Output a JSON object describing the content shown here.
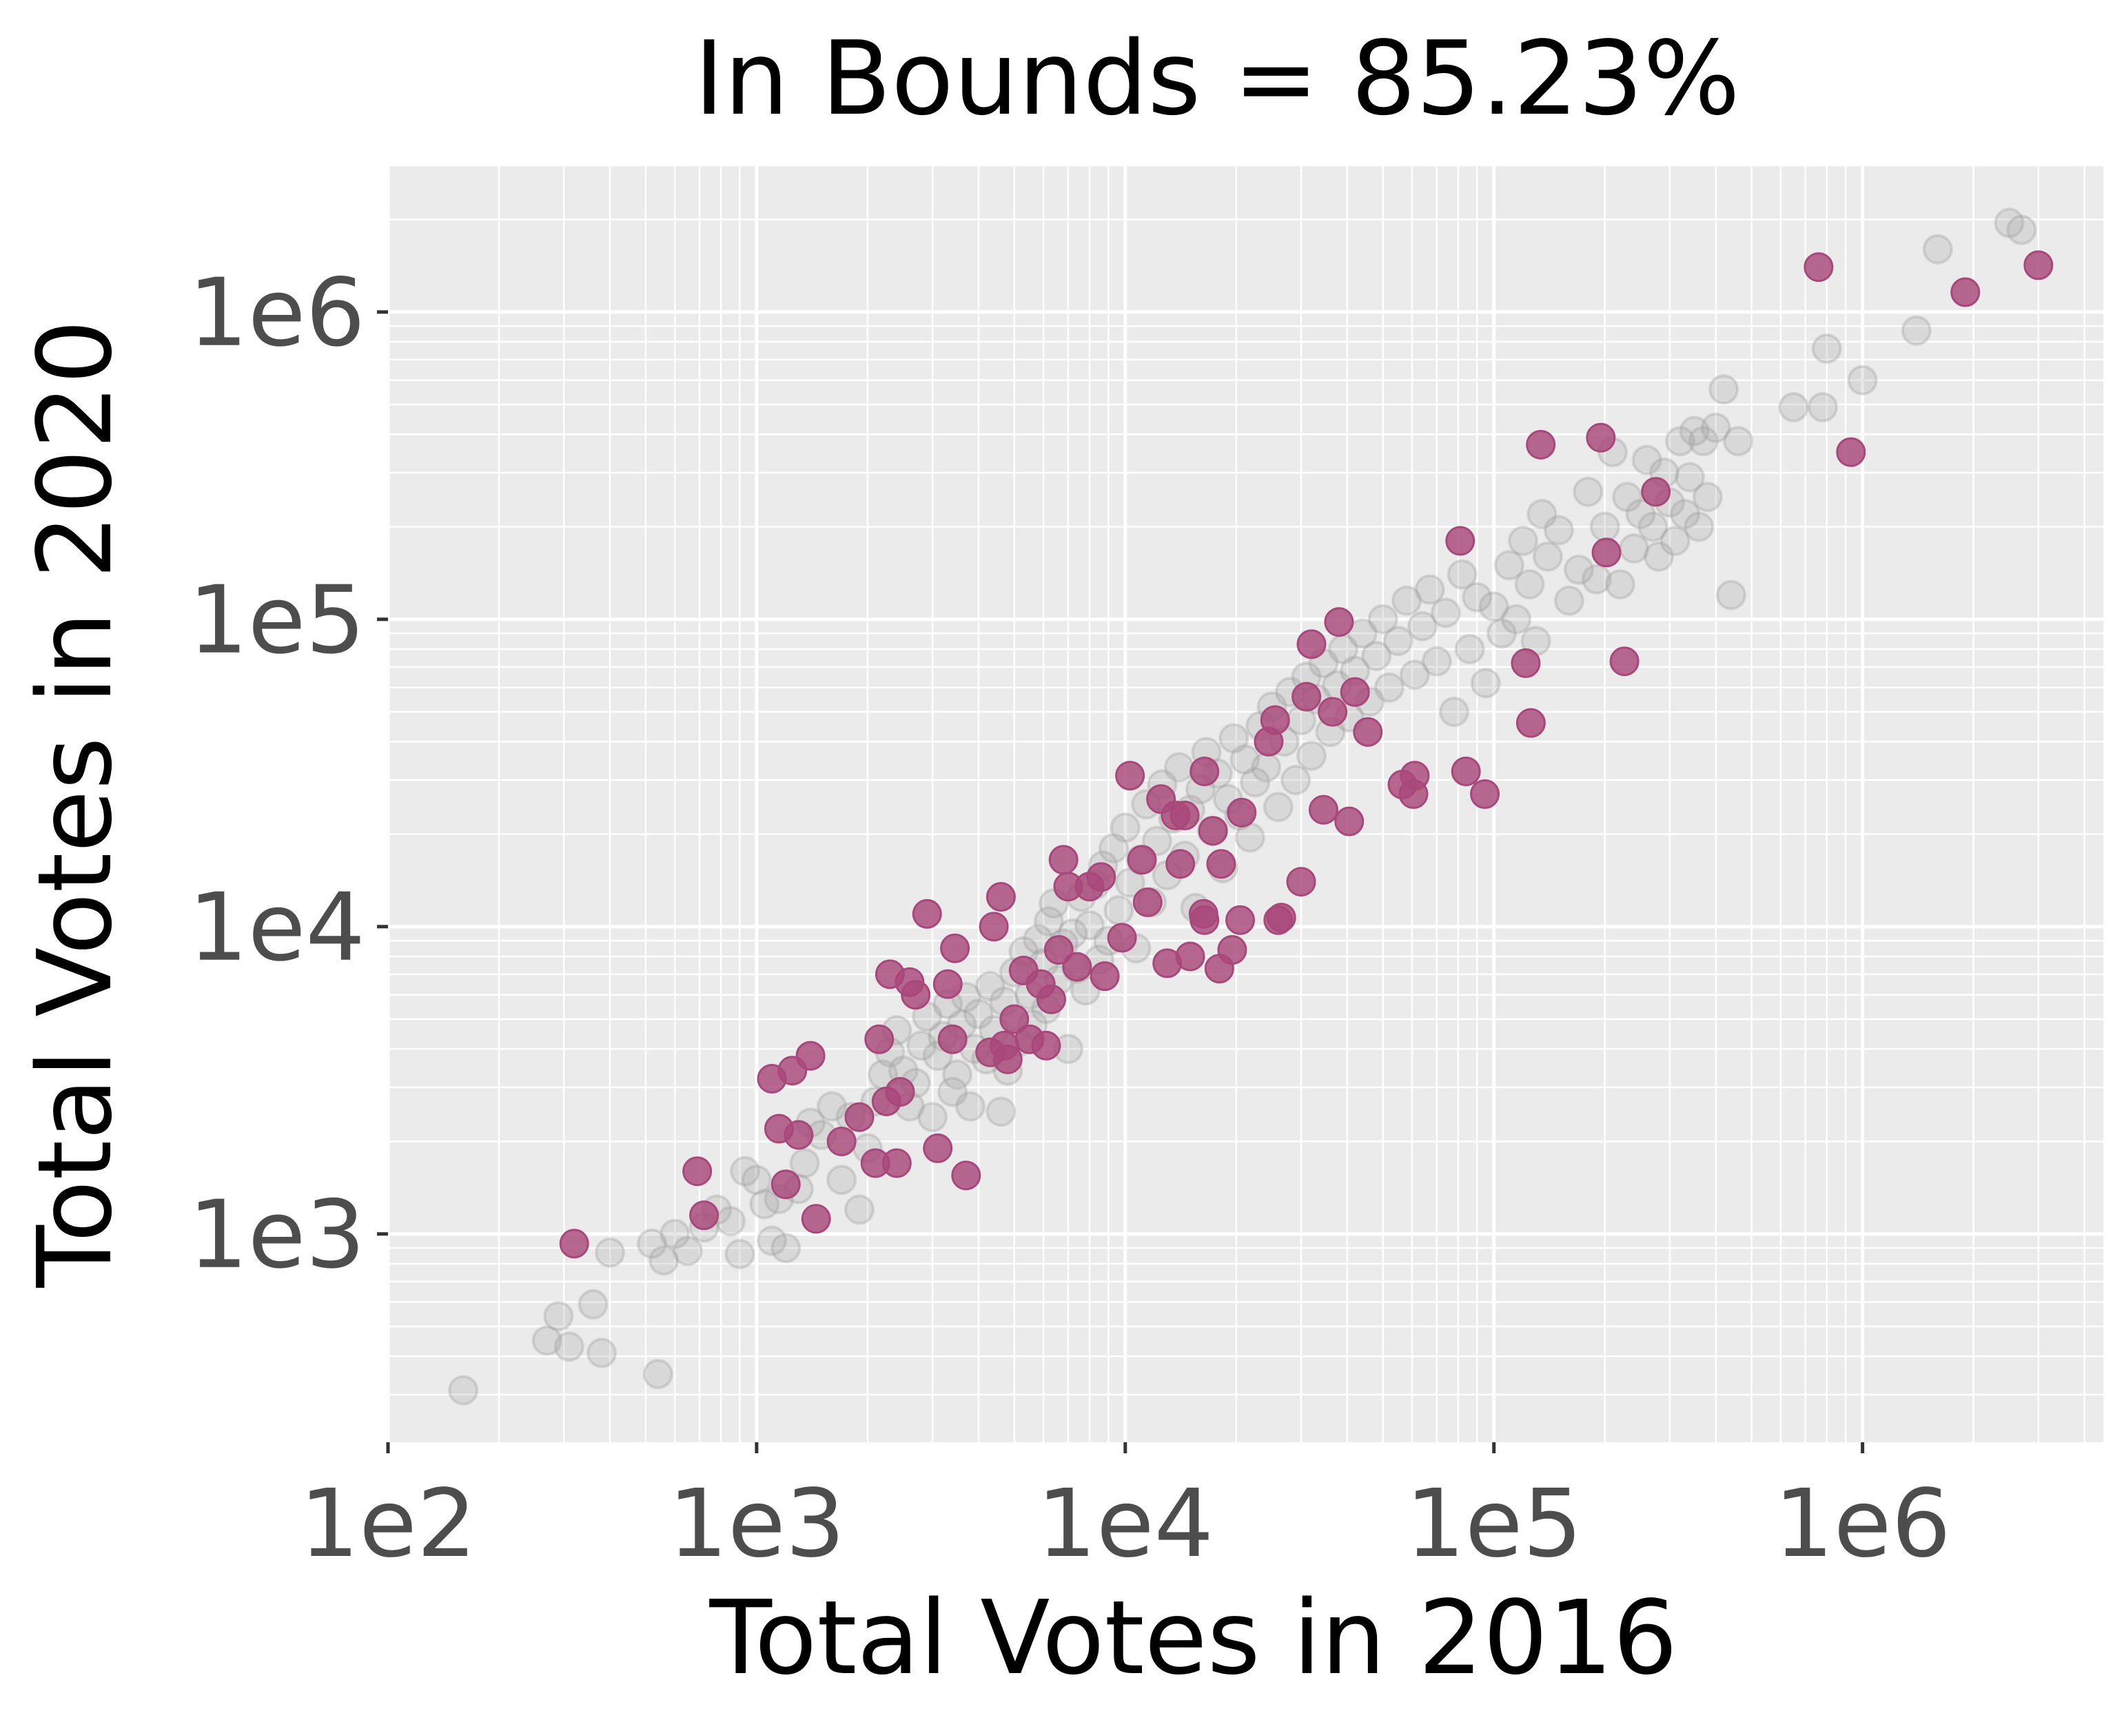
{
  "chart_data": {
    "type": "scatter",
    "title": "In Bounds = 85.23%",
    "xlabel": "Total Votes in 2016",
    "ylabel": "Total Votes in 2020",
    "xscale": "log",
    "yscale": "log",
    "xlim": [
      100,
      4500000
    ],
    "ylim": [
      210,
      3000000
    ],
    "grid": true,
    "legend": "none",
    "x_ticks": [
      {
        "value": 100,
        "label": "1e2"
      },
      {
        "value": 1000,
        "label": "1e3"
      },
      {
        "value": 10000,
        "label": "1e4"
      },
      {
        "value": 100000,
        "label": "1e5"
      },
      {
        "value": 1000000,
        "label": "1e6"
      }
    ],
    "y_ticks": [
      {
        "value": 1000,
        "label": "1e3"
      },
      {
        "value": 10000,
        "label": "1e4"
      },
      {
        "value": 100000,
        "label": "1e5"
      },
      {
        "value": 1000000,
        "label": "1e6"
      }
    ],
    "colors": {
      "in_bounds": "#a0a0a0",
      "out_of_bounds": "#a8487a",
      "panel": "#ebebeb",
      "grid": "#ffffff"
    },
    "series": [
      {
        "points": [
          [
            160,
            310
          ],
          [
            270,
            450
          ],
          [
            290,
            540
          ],
          [
            310,
            430
          ],
          [
            360,
            590
          ],
          [
            380,
            410
          ],
          [
            400,
            870
          ],
          [
            520,
            930
          ],
          [
            540,
            350
          ],
          [
            560,
            820
          ],
          [
            600,
            1000
          ],
          [
            650,
            880
          ],
          [
            720,
            1050
          ],
          [
            780,
            1200
          ],
          [
            850,
            1100
          ],
          [
            900,
            860
          ],
          [
            930,
            1600
          ],
          [
            1000,
            1500
          ],
          [
            1050,
            1250
          ],
          [
            1100,
            950
          ],
          [
            1150,
            1300
          ],
          [
            1200,
            900
          ],
          [
            1300,
            1400
          ],
          [
            1350,
            1700
          ],
          [
            1400,
            2300
          ],
          [
            1500,
            2100
          ],
          [
            1600,
            2600
          ],
          [
            1700,
            1500
          ],
          [
            1800,
            2400
          ],
          [
            1900,
            1200
          ],
          [
            2000,
            1900
          ],
          [
            2100,
            2700
          ],
          [
            2200,
            3300
          ],
          [
            2300,
            3900
          ],
          [
            2400,
            4600
          ],
          [
            2500,
            3400
          ],
          [
            2600,
            2600
          ],
          [
            2700,
            3100
          ],
          [
            2800,
            4100
          ],
          [
            2900,
            5100
          ],
          [
            3000,
            2400
          ],
          [
            3100,
            3800
          ],
          [
            3200,
            4400
          ],
          [
            3300,
            5600
          ],
          [
            3400,
            2900
          ],
          [
            3500,
            3300
          ],
          [
            3600,
            4800
          ],
          [
            3700,
            5900
          ],
          [
            3800,
            2600
          ],
          [
            3900,
            4000
          ],
          [
            4000,
            5200
          ],
          [
            4200,
            3700
          ],
          [
            4300,
            6400
          ],
          [
            4400,
            4600
          ],
          [
            4600,
            2500
          ],
          [
            4700,
            5700
          ],
          [
            4800,
            3400
          ],
          [
            5000,
            7100
          ],
          [
            5100,
            4200
          ],
          [
            5300,
            8300
          ],
          [
            5500,
            6000
          ],
          [
            5600,
            4800
          ],
          [
            5800,
            9100
          ],
          [
            6000,
            7600
          ],
          [
            6100,
            5400
          ],
          [
            6200,
            10400
          ],
          [
            6400,
            11900
          ],
          [
            6600,
            6700
          ],
          [
            6800,
            8800
          ],
          [
            7000,
            4000
          ],
          [
            7200,
            9500
          ],
          [
            7400,
            7300
          ],
          [
            7600,
            12500
          ],
          [
            7800,
            6200
          ],
          [
            8000,
            10100
          ],
          [
            8300,
            13700
          ],
          [
            8500,
            7800
          ],
          [
            8700,
            15800
          ],
          [
            9000,
            9000
          ],
          [
            9300,
            18000
          ],
          [
            9600,
            11300
          ],
          [
            10000,
            21000
          ],
          [
            10300,
            13900
          ],
          [
            10700,
            8500
          ],
          [
            11000,
            16500
          ],
          [
            11400,
            25000
          ],
          [
            11800,
            12000
          ],
          [
            12200,
            19000
          ],
          [
            12600,
            29000
          ],
          [
            13000,
            14700
          ],
          [
            13500,
            22500
          ],
          [
            14000,
            33000
          ],
          [
            14500,
            17000
          ],
          [
            15000,
            24000
          ],
          [
            15500,
            11500
          ],
          [
            16000,
            28000
          ],
          [
            16600,
            37000
          ],
          [
            17200,
            20500
          ],
          [
            17800,
            31500
          ],
          [
            18400,
            15500
          ],
          [
            19000,
            26000
          ],
          [
            19700,
            41000
          ],
          [
            20400,
            23000
          ],
          [
            21100,
            35000
          ],
          [
            21800,
            19500
          ],
          [
            22500,
            29500
          ],
          [
            23300,
            45000
          ],
          [
            24100,
            33000
          ],
          [
            25000,
            52000
          ],
          [
            26000,
            24500
          ],
          [
            27000,
            40000
          ],
          [
            28000,
            58000
          ],
          [
            29000,
            30000
          ],
          [
            30000,
            47000
          ],
          [
            31000,
            65000
          ],
          [
            32000,
            36000
          ],
          [
            33000,
            55000
          ],
          [
            34500,
            72000
          ],
          [
            36000,
            43000
          ],
          [
            37500,
            61000
          ],
          [
            39000,
            80000
          ],
          [
            40500,
            48000
          ],
          [
            42000,
            68000
          ],
          [
            44000,
            90000
          ],
          [
            46000,
            54000
          ],
          [
            48000,
            76000
          ],
          [
            50000,
            100000
          ],
          [
            52000,
            60000
          ],
          [
            55000,
            85000
          ],
          [
            58000,
            115000
          ],
          [
            61000,
            66000
          ],
          [
            64000,
            95000
          ],
          [
            67000,
            125000
          ],
          [
            70000,
            73000
          ],
          [
            74000,
            105000
          ],
          [
            78000,
            50000
          ],
          [
            82000,
            140000
          ],
          [
            86000,
            80000
          ],
          [
            90000,
            118000
          ],
          [
            95000,
            62000
          ],
          [
            100000,
            110000
          ],
          [
            105000,
            90000
          ],
          [
            110000,
            150000
          ],
          [
            115000,
            100000
          ],
          [
            120000,
            180000
          ],
          [
            125000,
            130000
          ],
          [
            130000,
            85000
          ],
          [
            135000,
            220000
          ],
          [
            140000,
            160000
          ],
          [
            150000,
            195000
          ],
          [
            160000,
            115000
          ],
          [
            170000,
            145000
          ],
          [
            180000,
            260000
          ],
          [
            190000,
            135000
          ],
          [
            200000,
            200000
          ],
          [
            210000,
            350000
          ],
          [
            220000,
            130000
          ],
          [
            230000,
            250000
          ],
          [
            240000,
            170000
          ],
          [
            250000,
            220000
          ],
          [
            260000,
            330000
          ],
          [
            270000,
            200000
          ],
          [
            280000,
            160000
          ],
          [
            290000,
            300000
          ],
          [
            300000,
            240000
          ],
          [
            310000,
            180000
          ],
          [
            320000,
            380000
          ],
          [
            330000,
            220000
          ],
          [
            340000,
            290000
          ],
          [
            350000,
            410000
          ],
          [
            360000,
            200000
          ],
          [
            370000,
            380000
          ],
          [
            380000,
            250000
          ],
          [
            400000,
            420000
          ],
          [
            420000,
            560000
          ],
          [
            440000,
            120000
          ],
          [
            460000,
            380000
          ],
          [
            650000,
            490000
          ],
          [
            780000,
            490000
          ],
          [
            800000,
            760000
          ],
          [
            1000000,
            600000
          ],
          [
            1400000,
            870000
          ],
          [
            1600000,
            1600000
          ],
          [
            2500000,
            1950000
          ],
          [
            2700000,
            1850000
          ]
        ]
      },
      {
        "points": [
          [
            320,
            930
          ],
          [
            690,
            1600
          ],
          [
            720,
            1150
          ],
          [
            1100,
            3200
          ],
          [
            1150,
            2200
          ],
          [
            1200,
            1450
          ],
          [
            1250,
            3400
          ],
          [
            1300,
            2100
          ],
          [
            1400,
            3800
          ],
          [
            1450,
            1120
          ],
          [
            1700,
            2000
          ],
          [
            1900,
            2400
          ],
          [
            2100,
            1700
          ],
          [
            2150,
            4300
          ],
          [
            2250,
            2700
          ],
          [
            2300,
            7000
          ],
          [
            2400,
            1700
          ],
          [
            2450,
            2900
          ],
          [
            2600,
            6600
          ],
          [
            2700,
            6000
          ],
          [
            2900,
            11000
          ],
          [
            3100,
            1900
          ],
          [
            3300,
            6500
          ],
          [
            3400,
            4300
          ],
          [
            3450,
            8500
          ],
          [
            3700,
            1550
          ],
          [
            4300,
            3900
          ],
          [
            4400,
            10000
          ],
          [
            4600,
            12500
          ],
          [
            4700,
            4100
          ],
          [
            4800,
            3700
          ],
          [
            5000,
            5000
          ],
          [
            5300,
            7200
          ],
          [
            5500,
            4300
          ],
          [
            5900,
            6500
          ],
          [
            6100,
            4100
          ],
          [
            6300,
            5800
          ],
          [
            6600,
            8400
          ],
          [
            6800,
            16500
          ],
          [
            7000,
            13500
          ],
          [
            7400,
            7400
          ],
          [
            8000,
            13500
          ],
          [
            8600,
            14500
          ],
          [
            8800,
            6900
          ],
          [
            9800,
            9200
          ],
          [
            10300,
            31000
          ],
          [
            11100,
            16500
          ],
          [
            11500,
            12000
          ],
          [
            12500,
            26000
          ],
          [
            13000,
            7600
          ],
          [
            13700,
            23000
          ],
          [
            14100,
            16000
          ],
          [
            14500,
            23000
          ],
          [
            15000,
            8000
          ],
          [
            16300,
            11000
          ],
          [
            16400,
            10500
          ],
          [
            16400,
            32000
          ],
          [
            17300,
            20500
          ],
          [
            18000,
            7300
          ],
          [
            18200,
            16000
          ],
          [
            19500,
            8400
          ],
          [
            20500,
            10500
          ],
          [
            20700,
            23500
          ],
          [
            24500,
            40000
          ],
          [
            25500,
            47000
          ],
          [
            26000,
            10500
          ],
          [
            26500,
            10700
          ],
          [
            30000,
            14000
          ],
          [
            31000,
            56000
          ],
          [
            32000,
            83000
          ],
          [
            34500,
            24000
          ],
          [
            36500,
            50000
          ],
          [
            38000,
            98000
          ],
          [
            40500,
            22000
          ],
          [
            42000,
            58000
          ],
          [
            45500,
            43000
          ],
          [
            56500,
            29000
          ],
          [
            60500,
            27000
          ],
          [
            61000,
            31000
          ],
          [
            81000,
            180000
          ],
          [
            84000,
            32000
          ],
          [
            94500,
            27000
          ],
          [
            122000,
            72000
          ],
          [
            126000,
            46000
          ],
          [
            134000,
            370000
          ],
          [
            195000,
            390000
          ],
          [
            202000,
            165000
          ],
          [
            226000,
            73000
          ],
          [
            275000,
            260000
          ],
          [
            760000,
            1400000
          ],
          [
            930000,
            350000
          ],
          [
            1900000,
            1160000
          ],
          [
            3000000,
            1420000
          ]
        ]
      }
    ]
  }
}
